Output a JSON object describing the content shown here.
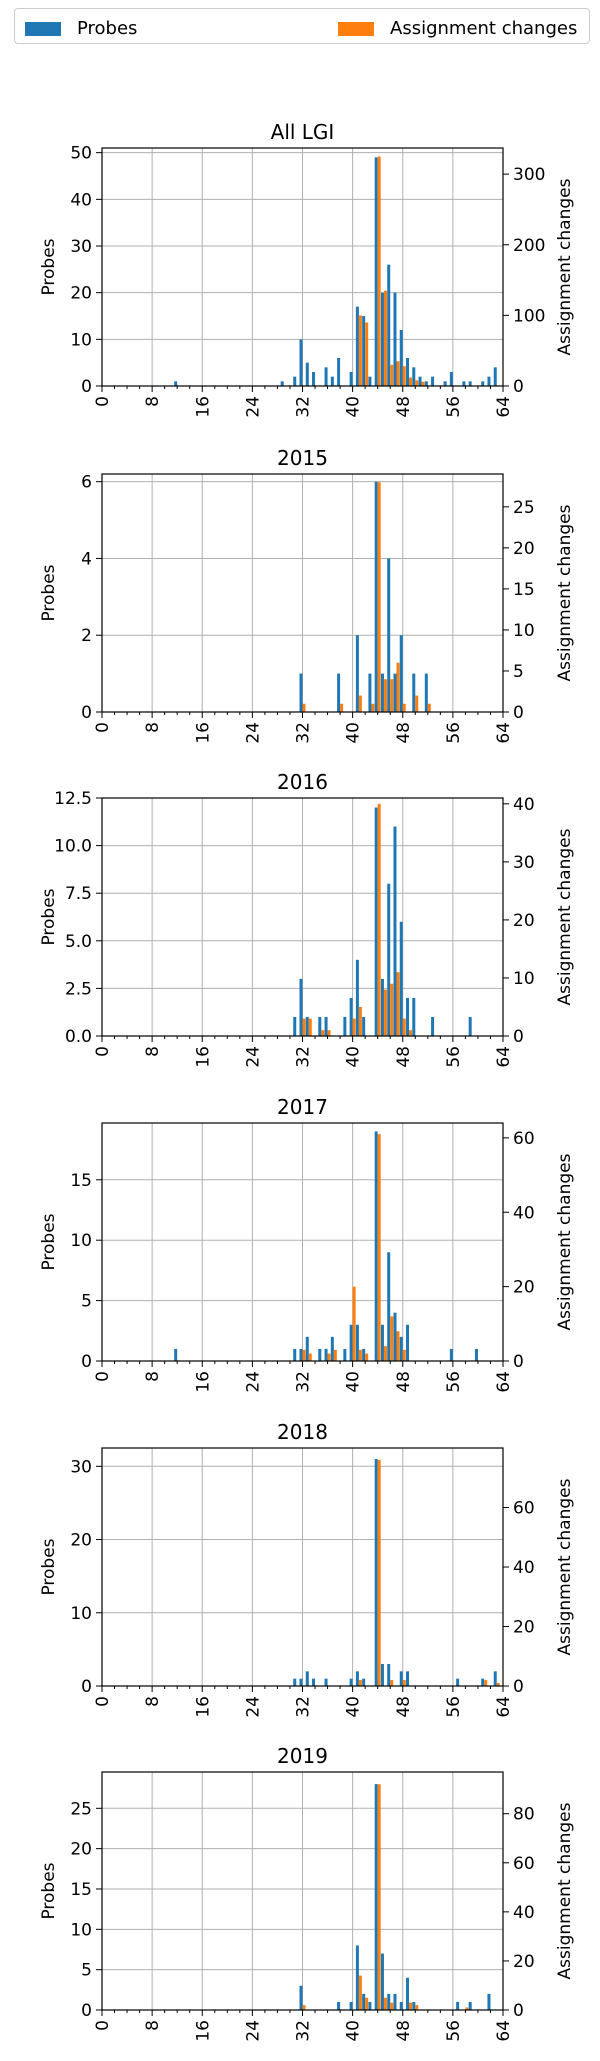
{
  "legend": {
    "probes_label": "Probes",
    "changes_label": "Assignment changes"
  },
  "colors": {
    "probes": "#1f77b4",
    "changes": "#ff7f0e",
    "grid": "#b0b0b0"
  },
  "chart_data": [
    {
      "type": "bar",
      "title": "All LGI",
      "ylabel": "Probes",
      "y2label": "Assignment changes",
      "ylim": [
        0,
        51
      ],
      "yticks": [
        0,
        10,
        20,
        30,
        40,
        50
      ],
      "y2lim": [
        0,
        337
      ],
      "y2ticks": [
        0,
        100,
        200,
        300
      ],
      "xlim": [
        0,
        64
      ],
      "xticks": [
        0,
        8,
        16,
        24,
        32,
        40,
        48,
        56,
        64
      ],
      "series": [
        {
          "name": "Probes",
          "axis": "left",
          "points": [
            [
              12,
              1
            ],
            [
              29,
              1
            ],
            [
              31,
              2
            ],
            [
              32,
              10
            ],
            [
              33,
              5
            ],
            [
              34,
              3
            ],
            [
              36,
              4
            ],
            [
              37,
              2
            ],
            [
              38,
              6
            ],
            [
              40,
              3
            ],
            [
              41,
              17
            ],
            [
              42,
              15
            ],
            [
              43,
              2
            ],
            [
              44,
              49
            ],
            [
              45,
              20
            ],
            [
              46,
              26
            ],
            [
              47,
              20
            ],
            [
              48,
              12
            ],
            [
              49,
              6
            ],
            [
              50,
              4
            ],
            [
              51,
              2
            ],
            [
              52,
              1
            ],
            [
              53,
              2
            ],
            [
              55,
              1
            ],
            [
              56,
              3
            ],
            [
              58,
              1
            ],
            [
              59,
              1
            ],
            [
              61,
              1
            ],
            [
              62,
              2
            ],
            [
              63,
              4
            ]
          ]
        },
        {
          "name": "Assignment changes",
          "axis": "right",
          "points": [
            [
              41,
              100
            ],
            [
              42,
              90
            ],
            [
              44,
              325
            ],
            [
              45,
              135
            ],
            [
              46,
              30
            ],
            [
              47,
              35
            ],
            [
              48,
              28
            ],
            [
              49,
              12
            ],
            [
              50,
              8
            ],
            [
              51,
              6
            ]
          ]
        }
      ]
    },
    {
      "type": "bar",
      "title": "2015",
      "ylabel": "Probes",
      "y2label": "Assignment changes",
      "ylim": [
        0,
        6.2
      ],
      "yticks": [
        0,
        2,
        4,
        6
      ],
      "y2lim": [
        0,
        29
      ],
      "y2ticks": [
        0,
        5,
        10,
        15,
        20,
        25
      ],
      "xlim": [
        0,
        64
      ],
      "xticks": [
        0,
        8,
        16,
        24,
        32,
        40,
        48,
        56,
        64
      ],
      "series": [
        {
          "name": "Probes",
          "axis": "left",
          "points": [
            [
              32,
              1
            ],
            [
              38,
              1
            ],
            [
              41,
              2
            ],
            [
              43,
              1
            ],
            [
              44,
              6
            ],
            [
              45,
              1
            ],
            [
              46,
              4
            ],
            [
              47,
              1
            ],
            [
              48,
              2
            ],
            [
              50,
              1
            ],
            [
              52,
              1
            ]
          ]
        },
        {
          "name": "Assignment changes",
          "axis": "right",
          "points": [
            [
              32,
              1
            ],
            [
              38,
              1
            ],
            [
              41,
              2
            ],
            [
              43,
              1
            ],
            [
              44,
              28
            ],
            [
              45,
              4
            ],
            [
              46,
              4
            ],
            [
              47,
              6
            ],
            [
              48,
              1
            ],
            [
              50,
              2
            ],
            [
              52,
              1
            ]
          ]
        }
      ]
    },
    {
      "type": "bar",
      "title": "2016",
      "ylabel": "Probes",
      "y2label": "Assignment changes",
      "ylim": [
        0,
        12.5
      ],
      "yticks": [
        0.0,
        2.5,
        5.0,
        7.5,
        10.0,
        12.5
      ],
      "y2lim": [
        0,
        41
      ],
      "y2ticks": [
        0,
        10,
        20,
        30,
        40
      ],
      "xlim": [
        0,
        64
      ],
      "xticks": [
        0,
        8,
        16,
        24,
        32,
        40,
        48,
        56,
        64
      ],
      "series": [
        {
          "name": "Probes",
          "axis": "left",
          "points": [
            [
              31,
              1
            ],
            [
              32,
              3
            ],
            [
              33,
              1
            ],
            [
              35,
              1
            ],
            [
              36,
              1
            ],
            [
              39,
              1
            ],
            [
              40,
              2
            ],
            [
              41,
              4
            ],
            [
              42,
              1
            ],
            [
              44,
              12
            ],
            [
              45,
              3
            ],
            [
              46,
              8
            ],
            [
              47,
              11
            ],
            [
              48,
              6
            ],
            [
              49,
              2
            ],
            [
              50,
              2
            ],
            [
              53,
              1
            ],
            [
              59,
              1
            ]
          ]
        },
        {
          "name": "Assignment changes",
          "axis": "right",
          "points": [
            [
              32,
              3
            ],
            [
              33,
              3
            ],
            [
              35,
              1
            ],
            [
              36,
              1
            ],
            [
              40,
              3
            ],
            [
              41,
              5
            ],
            [
              44,
              40
            ],
            [
              45,
              8
            ],
            [
              46,
              9
            ],
            [
              47,
              11
            ],
            [
              48,
              3
            ],
            [
              49,
              1
            ]
          ]
        }
      ]
    },
    {
      "type": "bar",
      "title": "2017",
      "ylabel": "Probes",
      "y2label": "Assignment changes",
      "ylim": [
        0,
        19.7
      ],
      "yticks": [
        0,
        5,
        10,
        15
      ],
      "y2lim": [
        0,
        64
      ],
      "y2ticks": [
        0,
        20,
        40,
        60
      ],
      "xlim": [
        0,
        64
      ],
      "xticks": [
        0,
        8,
        16,
        24,
        32,
        40,
        48,
        56,
        64
      ],
      "series": [
        {
          "name": "Probes",
          "axis": "left",
          "points": [
            [
              12,
              1
            ],
            [
              31,
              1
            ],
            [
              32,
              1
            ],
            [
              33,
              2
            ],
            [
              35,
              1
            ],
            [
              36,
              1
            ],
            [
              37,
              2
            ],
            [
              39,
              1
            ],
            [
              40,
              3
            ],
            [
              41,
              3
            ],
            [
              42,
              1
            ],
            [
              44,
              19
            ],
            [
              45,
              3
            ],
            [
              46,
              9
            ],
            [
              47,
              4
            ],
            [
              48,
              2
            ],
            [
              49,
              3
            ],
            [
              56,
              1
            ],
            [
              60,
              1
            ]
          ]
        },
        {
          "name": "Assignment changes",
          "axis": "right",
          "points": [
            [
              32,
              3
            ],
            [
              33,
              2
            ],
            [
              36,
              2
            ],
            [
              37,
              3
            ],
            [
              40,
              20
            ],
            [
              41,
              3
            ],
            [
              42,
              2
            ],
            [
              44,
              61
            ],
            [
              45,
              4
            ],
            [
              46,
              12
            ],
            [
              47,
              8
            ],
            [
              48,
              3
            ]
          ]
        }
      ]
    },
    {
      "type": "bar",
      "title": "2018",
      "ylabel": "Probes",
      "y2label": "Assignment changes",
      "ylim": [
        0,
        32.5
      ],
      "yticks": [
        0,
        10,
        20,
        30
      ],
      "y2lim": [
        0,
        80
      ],
      "y2ticks": [
        0,
        20,
        40,
        60
      ],
      "xlim": [
        0,
        64
      ],
      "xticks": [
        0,
        8,
        16,
        24,
        32,
        40,
        48,
        56,
        64
      ],
      "series": [
        {
          "name": "Probes",
          "axis": "left",
          "points": [
            [
              31,
              1
            ],
            [
              32,
              1
            ],
            [
              33,
              2
            ],
            [
              34,
              1
            ],
            [
              36,
              1
            ],
            [
              40,
              1
            ],
            [
              41,
              2
            ],
            [
              42,
              1
            ],
            [
              44,
              31
            ],
            [
              45,
              3
            ],
            [
              46,
              3
            ],
            [
              48,
              2
            ],
            [
              49,
              2
            ],
            [
              57,
              1
            ],
            [
              61,
              1
            ],
            [
              63,
              2
            ]
          ]
        },
        {
          "name": "Assignment changes",
          "axis": "right",
          "points": [
            [
              41,
              2
            ],
            [
              44,
              76
            ],
            [
              46,
              2
            ],
            [
              48,
              2
            ],
            [
              61,
              2
            ],
            [
              63,
              1
            ]
          ]
        }
      ]
    },
    {
      "type": "bar",
      "title": "2019",
      "ylabel": "Probes",
      "y2label": "Assignment changes",
      "ylim": [
        0,
        29.5
      ],
      "yticks": [
        0,
        5,
        10,
        15,
        20,
        25
      ],
      "y2lim": [
        0,
        97
      ],
      "y2ticks": [
        0,
        20,
        40,
        60,
        80
      ],
      "xlim": [
        0,
        64
      ],
      "xticks": [
        0,
        8,
        16,
        24,
        32,
        40,
        48,
        56,
        64
      ],
      "series": [
        {
          "name": "Probes",
          "axis": "left",
          "points": [
            [
              32,
              3
            ],
            [
              38,
              1
            ],
            [
              40,
              1
            ],
            [
              41,
              8
            ],
            [
              42,
              2
            ],
            [
              43,
              1
            ],
            [
              44,
              28
            ],
            [
              45,
              7
            ],
            [
              46,
              2
            ],
            [
              47,
              2
            ],
            [
              48,
              1
            ],
            [
              49,
              4
            ],
            [
              50,
              1
            ],
            [
              57,
              1
            ],
            [
              59,
              1
            ],
            [
              62,
              2
            ]
          ]
        },
        {
          "name": "Assignment changes",
          "axis": "right",
          "points": [
            [
              32,
              2
            ],
            [
              41,
              14
            ],
            [
              42,
              5
            ],
            [
              44,
              92
            ],
            [
              45,
              5
            ],
            [
              46,
              3
            ],
            [
              49,
              3
            ],
            [
              50,
              2
            ],
            [
              58,
              1
            ]
          ]
        }
      ]
    }
  ]
}
